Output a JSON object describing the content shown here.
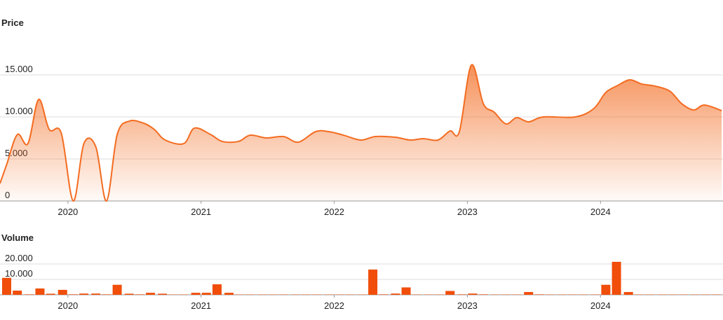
{
  "chart_data": [
    {
      "type": "area",
      "title": "Price",
      "color": "#f36c21",
      "x": [
        2019.49,
        2019.54,
        2019.62,
        2019.7,
        2019.78,
        2019.86,
        2019.95,
        2020.04,
        2020.12,
        2020.21,
        2020.29,
        2020.37,
        2020.46,
        2020.57,
        2020.65,
        2020.73,
        2020.87,
        2020.95,
        2021.07,
        2021.16,
        2021.28,
        2021.37,
        2021.49,
        2021.62,
        2021.73,
        2021.86,
        2021.96,
        2022.07,
        2022.2,
        2022.31,
        2022.46,
        2022.57,
        2022.67,
        2022.78,
        2022.87,
        2022.94,
        2023.03,
        2023.12,
        2023.2,
        2023.29,
        2023.37,
        2023.46,
        2023.57,
        2023.81,
        2023.95,
        2024.04,
        2024.13,
        2024.22,
        2024.31,
        2024.41,
        2024.52,
        2024.61,
        2024.7,
        2024.78,
        2024.91
      ],
      "values": [
        2080,
        4330,
        7900,
        6830,
        12080,
        8500,
        8080,
        0,
        6830,
        6420,
        0,
        7900,
        9500,
        9250,
        8500,
        7250,
        6830,
        8670,
        7920,
        7080,
        7080,
        7830,
        7500,
        7670,
        7000,
        8250,
        8250,
        7830,
        7250,
        7670,
        7580,
        7250,
        7420,
        7250,
        8330,
        8250,
        16170,
        11580,
        10580,
        9170,
        9920,
        9420,
        10000,
        10000,
        11000,
        12920,
        13750,
        14420,
        13920,
        13670,
        13080,
        11580,
        10830,
        11420,
        10750
      ],
      "xlim": [
        2019.49,
        2024.92
      ],
      "xticks": [
        2020,
        2021,
        2022,
        2023,
        2024
      ],
      "ylim": [
        0,
        20000
      ],
      "yticks": [
        0,
        {
          "value": 5000,
          "label": "5.000"
        },
        {
          "value": 10000,
          "label": "10.000"
        },
        {
          "value": 15000,
          "label": "15.000"
        }
      ],
      "grid": true
    },
    {
      "type": "bar",
      "title": "Volume",
      "color": "#f04e0a",
      "x": [
        2019.54,
        2019.62,
        2019.71,
        2019.79,
        2019.87,
        2019.96,
        2020.04,
        2020.12,
        2020.21,
        2020.29,
        2020.37,
        2020.46,
        2020.54,
        2020.62,
        2020.71,
        2020.79,
        2020.87,
        2020.96,
        2021.04,
        2021.12,
        2021.21,
        2021.29,
        2021.37,
        2021.46,
        2021.54,
        2021.62,
        2021.71,
        2021.79,
        2021.87,
        2021.96,
        2022.04,
        2022.12,
        2022.21,
        2022.29,
        2022.37,
        2022.46,
        2022.54,
        2022.62,
        2022.71,
        2022.79,
        2022.87,
        2022.96,
        2023.04,
        2023.12,
        2023.21,
        2023.29,
        2023.37,
        2023.46,
        2023.54,
        2023.62,
        2023.71,
        2023.79,
        2023.87,
        2023.96,
        2024.04,
        2024.12,
        2024.21,
        2024.29,
        2024.37,
        2024.46,
        2024.54,
        2024.62,
        2024.71,
        2024.79,
        2024.87
      ],
      "values": [
        11000,
        2700,
        300,
        4100,
        700,
        3200,
        300,
        800,
        800,
        300,
        6500,
        700,
        300,
        1300,
        700,
        200,
        200,
        1300,
        1300,
        6800,
        1300,
        200,
        200,
        200,
        200,
        200,
        200,
        200,
        200,
        200,
        200,
        200,
        200,
        16400,
        300,
        800,
        4800,
        200,
        200,
        200,
        2500,
        300,
        800,
        300,
        200,
        200,
        200,
        1800,
        300,
        200,
        200,
        200,
        200,
        200,
        6500,
        21400,
        1800,
        200,
        200,
        200,
        200,
        200,
        200,
        200,
        200
      ],
      "xlim": [
        2019.49,
        2024.92
      ],
      "xticks": [
        2020,
        2021,
        2022,
        2023,
        2024
      ],
      "ylim": [
        0,
        30000
      ],
      "yticks": [
        0,
        {
          "value": 10000,
          "label": "10.000"
        },
        {
          "value": 20000,
          "label": "20.000"
        }
      ],
      "grid": true
    }
  ]
}
